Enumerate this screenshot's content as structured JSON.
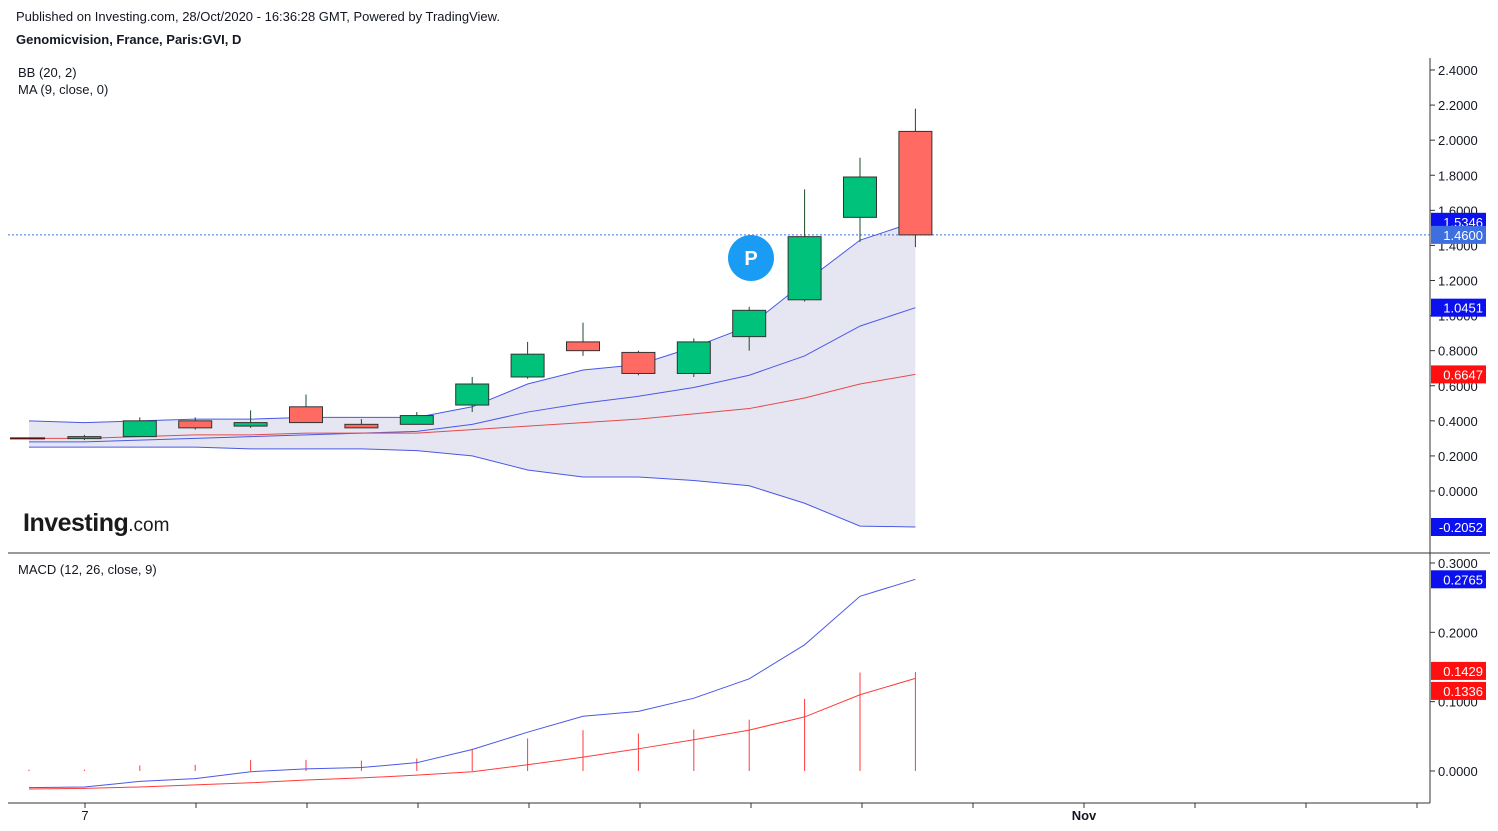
{
  "header": {
    "published": "Published on Investing.com, 28/Oct/2020 - 16:36:28 GMT, Powered by TradingView.",
    "instrument": "Genomicvision, France, Paris:GVI, D"
  },
  "indicators": {
    "bb": "BB (20, 2)",
    "ma": "MA (9, close, 0)",
    "macd": "MACD (12, 26, close, 9)"
  },
  "logo": {
    "bold": "Investing",
    "suffix": ".com"
  },
  "colors": {
    "up": "#00c27a",
    "down": "#ff6b63",
    "wick": "#1e4d2b",
    "bb_band": "#4a58e6",
    "bb_fill": "#e6e6f2",
    "ma": "#e34b4b",
    "macd": "#4a58e6",
    "signal": "#ff3b3b",
    "hist": "#ff3b3b",
    "last_price_line": "#3d6fe0",
    "badge_blue": "#0b10ee",
    "badge_light": "#3d6fe0",
    "badge_red": "#ff0f0f",
    "p_marker": "#1a9cf5"
  },
  "chart_data": [
    {
      "type": "candlestick",
      "title": "Genomicvision, France, Paris:GVI, D",
      "x": [
        "2020-10-07",
        "2020-10-08",
        "2020-10-09",
        "2020-10-12",
        "2020-10-13",
        "2020-10-14",
        "2020-10-15",
        "2020-10-16",
        "2020-10-19",
        "2020-10-20",
        "2020-10-21",
        "2020-10-22",
        "2020-10-23",
        "2020-10-26",
        "2020-10-27",
        "2020-10-28"
      ],
      "open": [
        0.3,
        0.3,
        0.31,
        0.4,
        0.37,
        0.48,
        0.38,
        0.38,
        0.49,
        0.65,
        0.85,
        0.79,
        0.67,
        0.88,
        1.09,
        1.56
      ],
      "high": [
        0.31,
        0.32,
        0.42,
        0.42,
        0.46,
        0.55,
        0.41,
        0.45,
        0.65,
        0.85,
        0.96,
        0.8,
        0.87,
        1.05,
        1.72,
        1.9
      ],
      "low": [
        0.29,
        0.29,
        0.31,
        0.35,
        0.36,
        0.39,
        0.36,
        0.38,
        0.45,
        0.64,
        0.77,
        0.66,
        0.65,
        0.8,
        1.08,
        1.42
      ],
      "close": [
        0.3,
        0.31,
        0.4,
        0.36,
        0.39,
        0.39,
        0.36,
        0.43,
        0.61,
        0.78,
        0.8,
        0.67,
        0.85,
        1.03,
        1.45,
        1.79
      ],
      "ohlc_extra_last": {
        "date": "2020-10-28",
        "open": 2.05,
        "high": 2.18,
        "low": 1.39,
        "close": 1.46
      },
      "bb_upper": [
        0.4,
        0.39,
        0.4,
        0.41,
        0.41,
        0.42,
        0.42,
        0.42,
        0.48,
        0.61,
        0.69,
        0.72,
        0.82,
        0.94,
        1.19,
        1.43,
        1.5346
      ],
      "bb_middle": [
        0.28,
        0.28,
        0.29,
        0.3,
        0.31,
        0.32,
        0.33,
        0.34,
        0.38,
        0.45,
        0.5,
        0.54,
        0.59,
        0.66,
        0.77,
        0.94,
        1.0451
      ],
      "bb_lower": [
        0.25,
        0.25,
        0.25,
        0.25,
        0.24,
        0.24,
        0.24,
        0.23,
        0.2,
        0.12,
        0.08,
        0.08,
        0.06,
        0.03,
        -0.07,
        -0.2,
        -0.2052
      ],
      "ma9": [
        0.3,
        0.3,
        0.31,
        0.32,
        0.32,
        0.33,
        0.33,
        0.33,
        0.35,
        0.37,
        0.39,
        0.41,
        0.44,
        0.47,
        0.53,
        0.61,
        0.6647
      ],
      "last_price": 1.46,
      "ylim": [
        -0.26,
        2.45
      ],
      "yticks": [
        "2.4000",
        "2.2000",
        "2.0000",
        "1.8000",
        "1.6000",
        "1.4000",
        "1.2000",
        "1.0000",
        "0.8000",
        "0.6000",
        "0.4000",
        "0.2000",
        "0.0000"
      ],
      "price_badges": [
        "1.5346",
        "1.4600",
        "1.0451",
        "0.6647",
        "-0.2052"
      ],
      "marker": "P"
    },
    {
      "type": "line",
      "title": "MACD (12, 26, close, 9)",
      "macd": [
        -0.024,
        -0.023,
        -0.015,
        -0.011,
        -0.001,
        0.003,
        0.005,
        0.012,
        0.031,
        0.056,
        0.079,
        0.086,
        0.105,
        0.133,
        0.182,
        0.252,
        0.2765
      ],
      "signal": [
        -0.026,
        -0.025,
        -0.023,
        -0.02,
        -0.017,
        -0.013,
        -0.01,
        -0.006,
        -0.001,
        0.009,
        0.02,
        0.032,
        0.045,
        0.059,
        0.078,
        0.11,
        0.1336
      ],
      "histogram": [
        0.002,
        0.002,
        0.008,
        0.009,
        0.016,
        0.016,
        0.015,
        0.018,
        0.032,
        0.047,
        0.059,
        0.054,
        0.06,
        0.074,
        0.104,
        0.142,
        0.1429
      ],
      "ylim": [
        -0.046,
        0.31
      ],
      "yticks": [
        "0.3000",
        "0.2000",
        "0.1000",
        "0.0000"
      ],
      "badges": [
        "0.2765",
        "0.1429",
        "0.1336"
      ]
    }
  ],
  "x_axis": {
    "labels": [
      "7",
      "Nov"
    ]
  }
}
